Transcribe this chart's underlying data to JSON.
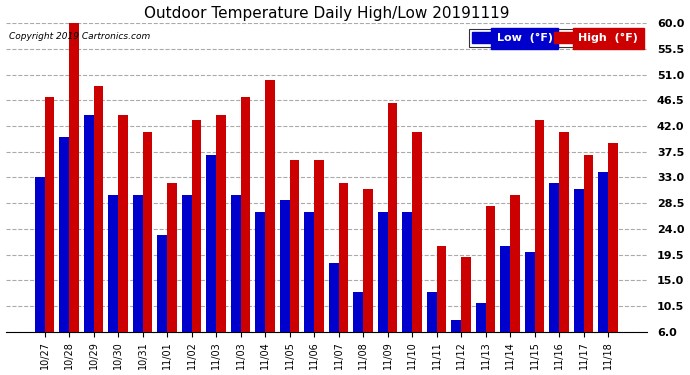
{
  "title": "Outdoor Temperature Daily High/Low 20191119",
  "copyright": "Copyright 2019 Cartronics.com",
  "categories": [
    "10/27",
    "10/28",
    "10/29",
    "10/30",
    "10/31",
    "11/01",
    "11/02",
    "11/03",
    "11/03",
    "11/04",
    "11/05",
    "11/06",
    "11/07",
    "11/08",
    "11/09",
    "11/10",
    "11/11",
    "11/12",
    "11/13",
    "11/14",
    "11/15",
    "11/16",
    "11/17",
    "11/18"
  ],
  "low_values": [
    33,
    40,
    44,
    30,
    30,
    23,
    30,
    37,
    30,
    27,
    29,
    27,
    18,
    13,
    27,
    27,
    13,
    8,
    11,
    21,
    20,
    32,
    31,
    34
  ],
  "high_values": [
    47,
    61,
    49,
    44,
    41,
    32,
    43,
    44,
    47,
    50,
    36,
    36,
    32,
    31,
    46,
    41,
    21,
    19,
    28,
    30,
    43,
    41,
    37,
    39
  ],
  "low_color": "#0000cc",
  "high_color": "#cc0000",
  "bg_color": "#ffffff",
  "grid_color": "#aaaaaa",
  "ylim_min": 6.0,
  "ylim_max": 60.0,
  "yticks": [
    6.0,
    10.5,
    15.0,
    19.5,
    24.0,
    28.5,
    33.0,
    37.5,
    42.0,
    46.5,
    51.0,
    55.5,
    60.0
  ],
  "legend_low_label": "Low  (°F)",
  "legend_high_label": "High  (°F)",
  "bar_width": 0.4,
  "figsize": [
    6.9,
    3.75
  ],
  "dpi": 100
}
